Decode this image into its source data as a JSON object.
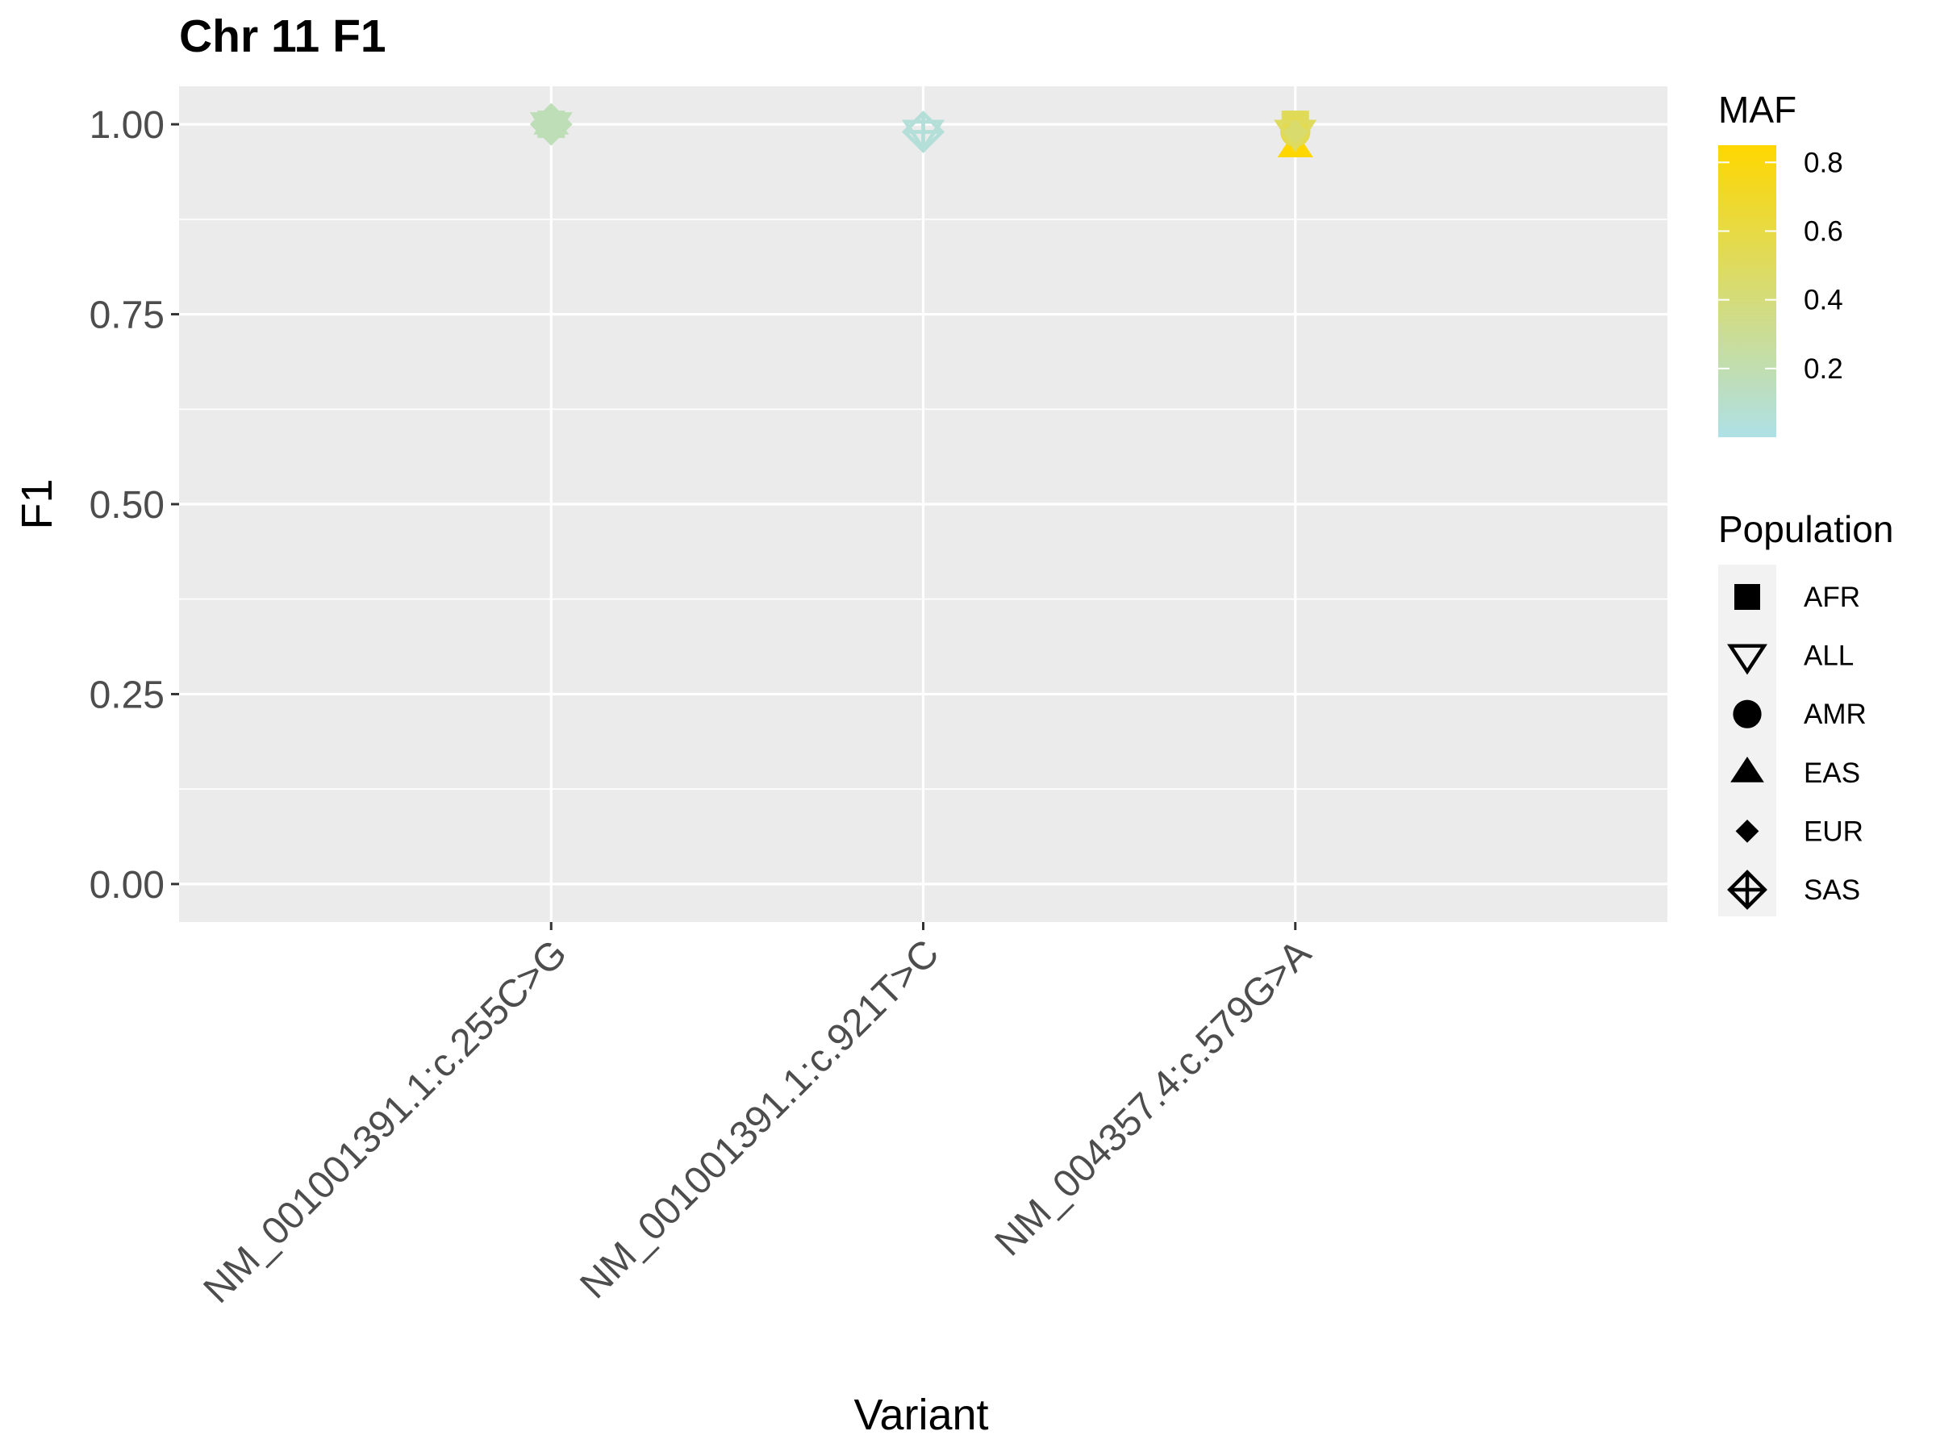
{
  "chart_data": {
    "type": "scatter",
    "title": "Chr 11 F1",
    "xlabel": "Variant",
    "ylabel": "F1",
    "ylim": [
      -0.05,
      1.05
    ],
    "yticks": [
      0.0,
      0.25,
      0.5,
      0.75,
      1.0
    ],
    "ytick_labels": [
      "0.00",
      "0.25",
      "0.50",
      "0.75",
      "1.00"
    ],
    "categories": [
      "NM_001001391.1:c.255C>G",
      "NM_001001391.1:c.921T>C",
      "NM_004357.4:c.579G>A"
    ],
    "color_legend": {
      "title": "MAF",
      "low_color": "#AEE0E6",
      "high_color": "#FFD700",
      "range": [
        0.0,
        0.85
      ],
      "ticks": [
        0.2,
        0.4,
        0.6,
        0.8
      ],
      "tick_labels": [
        "0.2",
        "0.4",
        "0.6",
        "0.8"
      ]
    },
    "shape_legend": {
      "title": "Population",
      "entries": [
        {
          "label": "AFR",
          "shape": "square"
        },
        {
          "label": "ALL",
          "shape": "triangle-down-open"
        },
        {
          "label": "AMR",
          "shape": "circle"
        },
        {
          "label": "EAS",
          "shape": "triangle-up"
        },
        {
          "label": "EUR",
          "shape": "diamond"
        },
        {
          "label": "SAS",
          "shape": "diamond-cross-open"
        }
      ]
    },
    "points": [
      {
        "variant": "NM_001001391.1:c.255C>G",
        "population": "AFR",
        "f1": 1.0,
        "maf": 0.17
      },
      {
        "variant": "NM_001001391.1:c.255C>G",
        "population": "ALL",
        "f1": 1.0,
        "maf": 0.17
      },
      {
        "variant": "NM_001001391.1:c.255C>G",
        "population": "AMR",
        "f1": 1.0,
        "maf": 0.17
      },
      {
        "variant": "NM_001001391.1:c.255C>G",
        "population": "EAS",
        "f1": 1.0,
        "maf": 0.17
      },
      {
        "variant": "NM_001001391.1:c.255C>G",
        "population": "EUR",
        "f1": 1.0,
        "maf": 0.17
      },
      {
        "variant": "NM_001001391.1:c.255C>G",
        "population": "SAS",
        "f1": 1.0,
        "maf": 0.17
      },
      {
        "variant": "NM_001001391.1:c.921T>C",
        "population": "ALL",
        "f1": 0.99,
        "maf": 0.05
      },
      {
        "variant": "NM_001001391.1:c.921T>C",
        "population": "SAS",
        "f1": 0.99,
        "maf": 0.05
      },
      {
        "variant": "NM_004357.4:c.579G>A",
        "population": "EAS",
        "f1": 0.97,
        "maf": 0.85
      },
      {
        "variant": "NM_004357.4:c.579G>A",
        "population": "AFR",
        "f1": 1.0,
        "maf": 0.52
      },
      {
        "variant": "NM_004357.4:c.579G>A",
        "population": "AMR",
        "f1": 0.99,
        "maf": 0.55
      },
      {
        "variant": "NM_004357.4:c.579G>A",
        "population": "ALL",
        "f1": 0.99,
        "maf": 0.5
      },
      {
        "variant": "NM_004357.4:c.579G>A",
        "population": "EUR",
        "f1": 0.99,
        "maf": 0.45
      }
    ]
  }
}
